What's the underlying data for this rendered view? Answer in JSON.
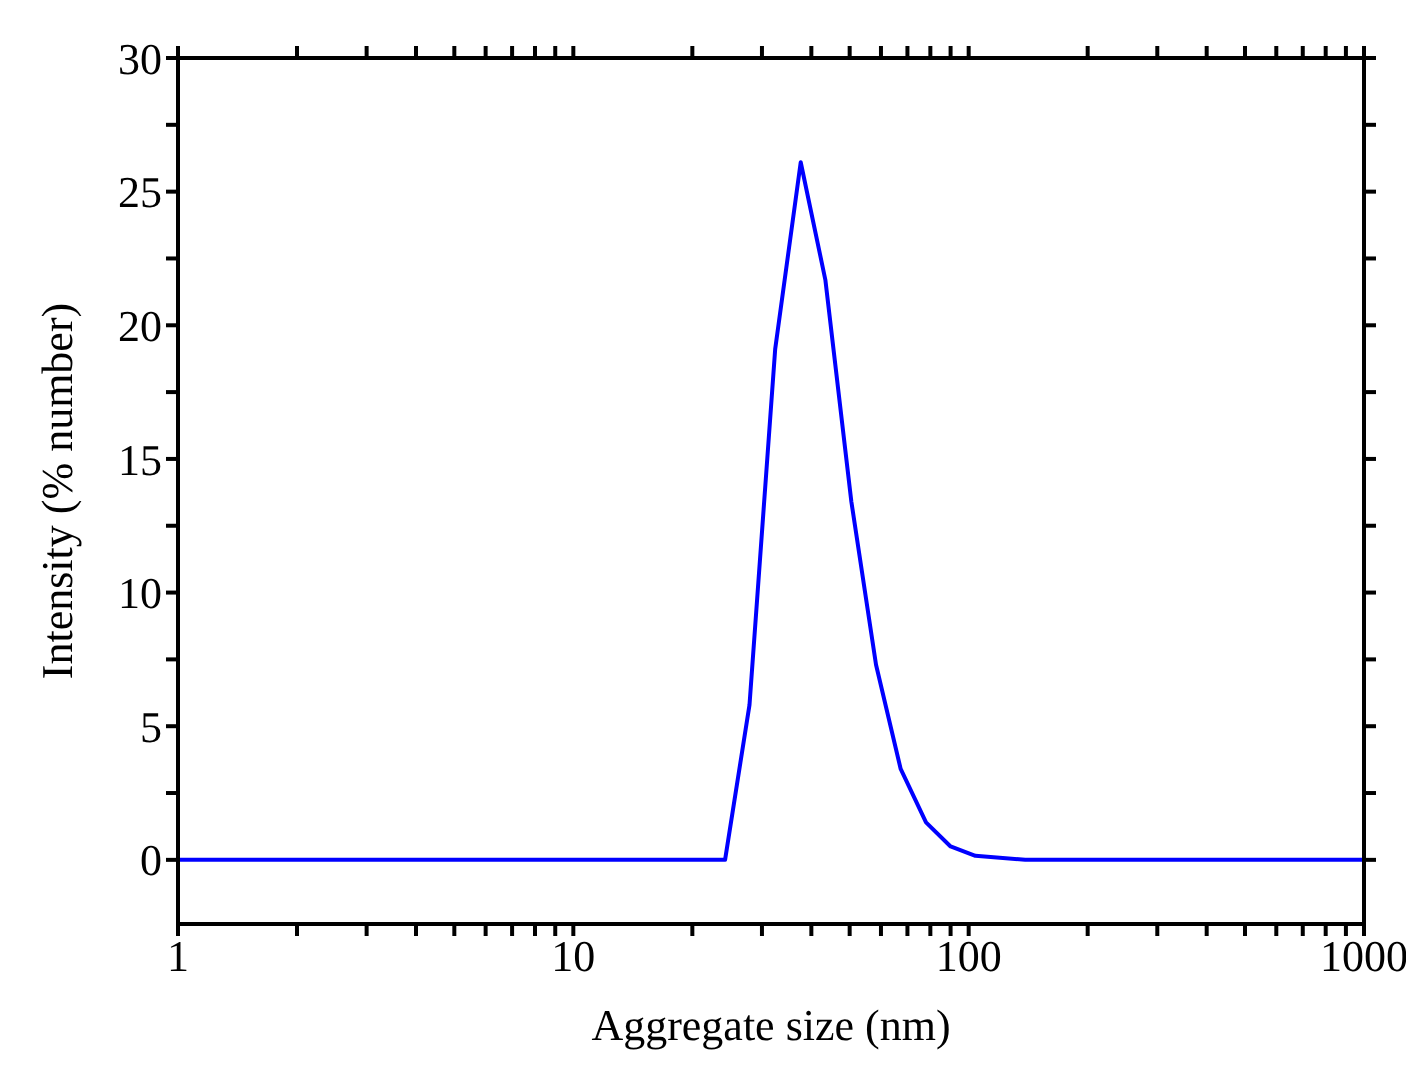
{
  "chart_data": {
    "type": "line",
    "xlabel": "Aggregate size (nm)",
    "ylabel": "Intensity (% number)",
    "log": "x",
    "x": [
      1,
      24.2,
      27.9,
      32.4,
      37.6,
      43.4,
      50.5,
      58.3,
      67.3,
      78,
      90,
      104,
      139,
      1000
    ],
    "series": [
      {
        "color": "#0000ff",
        "values": [
          0,
          0,
          5.8,
          19.1,
          26.1,
          21.7,
          13.4,
          7.3,
          3.4,
          1.4,
          0.5,
          0.15,
          0,
          0
        ]
      }
    ],
    "xlim": [
      1,
      1000
    ],
    "xticks": [
      1,
      {
        "value": 2,
        "label": null
      },
      {
        "value": 3,
        "label": null
      },
      {
        "value": 4,
        "label": null
      },
      {
        "value": 5,
        "label": null
      },
      {
        "value": 6,
        "label": null
      },
      {
        "value": 7,
        "label": null
      },
      {
        "value": 8,
        "label": null
      },
      {
        "value": 9,
        "label": null
      },
      10,
      {
        "value": 20,
        "label": null
      },
      {
        "value": 30,
        "label": null
      },
      {
        "value": 40,
        "label": null
      },
      {
        "value": 50,
        "label": null
      },
      {
        "value": 60,
        "label": null
      },
      {
        "value": 70,
        "label": null
      },
      {
        "value": 80,
        "label": null
      },
      {
        "value": 90,
        "label": null
      },
      100,
      {
        "value": 200,
        "label": null
      },
      {
        "value": 300,
        "label": null
      },
      {
        "value": 400,
        "label": null
      },
      {
        "value": 500,
        "label": null
      },
      {
        "value": 600,
        "label": null
      },
      {
        "value": 700,
        "label": null
      },
      {
        "value": 800,
        "label": null
      },
      {
        "value": 900,
        "label": null
      },
      1000
    ],
    "ylim": [
      -2.4,
      30
    ],
    "yticks": [
      0,
      {
        "value": 2.5,
        "label": null
      },
      5,
      {
        "value": 7.5,
        "label": null
      },
      10,
      {
        "value": 12.5,
        "label": null
      },
      15,
      {
        "value": 17.5,
        "label": null
      },
      20,
      {
        "value": 22.5,
        "label": null
      },
      25,
      {
        "value": 27.5,
        "label": null
      },
      30
    ],
    "grid": false,
    "legend": false,
    "marker": "none",
    "line_style": "solid"
  }
}
